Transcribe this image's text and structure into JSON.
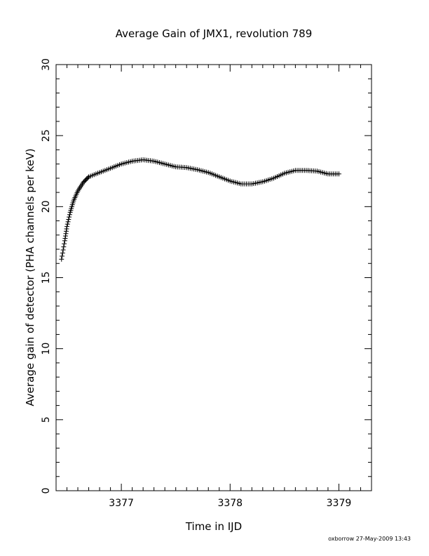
{
  "chart_data": {
    "type": "scatter",
    "title": "Average Gain of JMX1, revolution 789",
    "xlabel": "Time in IJD",
    "ylabel": "Average gain of detector (PHA channels per keV)",
    "xlim": [
      3376.4,
      3379.3
    ],
    "ylim": [
      0,
      30
    ],
    "x_ticks": [
      3377,
      3378,
      3379
    ],
    "y_ticks": [
      0,
      5,
      10,
      15,
      20,
      25,
      30
    ],
    "marker": "plus",
    "grid": false,
    "curve_points": [
      {
        "x": 3376.45,
        "y": 16.3
      },
      {
        "x": 3376.48,
        "y": 17.6
      },
      {
        "x": 3376.5,
        "y": 18.6
      },
      {
        "x": 3376.53,
        "y": 19.6
      },
      {
        "x": 3376.56,
        "y": 20.4
      },
      {
        "x": 3376.6,
        "y": 21.1
      },
      {
        "x": 3376.65,
        "y": 21.7
      },
      {
        "x": 3376.7,
        "y": 22.1
      },
      {
        "x": 3376.8,
        "y": 22.4
      },
      {
        "x": 3376.9,
        "y": 22.7
      },
      {
        "x": 3377.0,
        "y": 23.0
      },
      {
        "x": 3377.1,
        "y": 23.2
      },
      {
        "x": 3377.2,
        "y": 23.3
      },
      {
        "x": 3377.3,
        "y": 23.2
      },
      {
        "x": 3377.4,
        "y": 23.0
      },
      {
        "x": 3377.5,
        "y": 22.8
      },
      {
        "x": 3377.6,
        "y": 22.75
      },
      {
        "x": 3377.7,
        "y": 22.6
      },
      {
        "x": 3377.8,
        "y": 22.4
      },
      {
        "x": 3377.9,
        "y": 22.1
      },
      {
        "x": 3378.0,
        "y": 21.8
      },
      {
        "x": 3378.1,
        "y": 21.6
      },
      {
        "x": 3378.2,
        "y": 21.6
      },
      {
        "x": 3378.3,
        "y": 21.75
      },
      {
        "x": 3378.4,
        "y": 22.0
      },
      {
        "x": 3378.5,
        "y": 22.35
      },
      {
        "x": 3378.6,
        "y": 22.55
      },
      {
        "x": 3378.7,
        "y": 22.55
      },
      {
        "x": 3378.8,
        "y": 22.5
      },
      {
        "x": 3378.9,
        "y": 22.3
      },
      {
        "x": 3379.0,
        "y": 22.3
      }
    ]
  },
  "footer": "oxborrow 27-May-2009 13:43"
}
